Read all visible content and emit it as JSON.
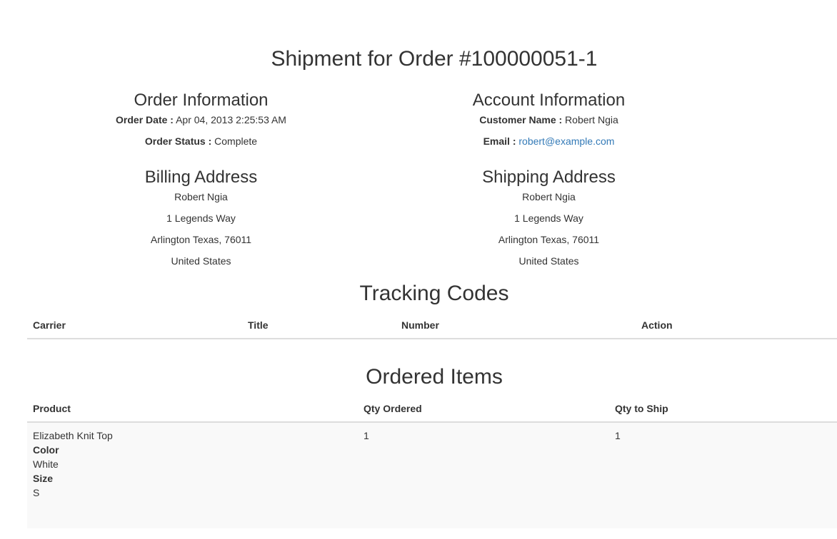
{
  "title": "Shipment for Order #100000051-1",
  "order_info": {
    "heading": "Order Information",
    "date_label": "Order Date :",
    "date_value": "Apr 04, 2013 2:25:53 AM",
    "status_label": "Order Status :",
    "status_value": "Complete"
  },
  "account_info": {
    "heading": "Account Information",
    "name_label": "Customer Name :",
    "name_value": "Robert Ngia",
    "email_label": "Email :",
    "email_value": "robert@example.com"
  },
  "billing": {
    "heading": "Billing Address",
    "lines": [
      "Robert Ngia",
      "1 Legends Way",
      "Arlington Texas, 76011",
      "United States"
    ]
  },
  "shipping": {
    "heading": "Shipping Address",
    "lines": [
      "Robert Ngia",
      "1 Legends Way",
      "Arlington Texas, 76011",
      "United States"
    ]
  },
  "tracking": {
    "heading": "Tracking Codes",
    "columns": [
      "Carrier",
      "Title",
      "Number",
      "Action"
    ]
  },
  "items": {
    "heading": "Ordered Items",
    "columns": [
      "Product",
      "Qty Ordered",
      "Qty to Ship"
    ],
    "rows": [
      {
        "product": "Elizabeth Knit Top",
        "opt1_label": "Color",
        "opt1_value": "White",
        "opt2_label": "Size",
        "opt2_value": "S",
        "qty_ordered": "1",
        "qty_to_ship": "1"
      }
    ]
  },
  "colors": {
    "link": "#337ab7",
    "text": "#333333",
    "row_stripe": "#f9f9f9",
    "border": "#dddddd"
  }
}
